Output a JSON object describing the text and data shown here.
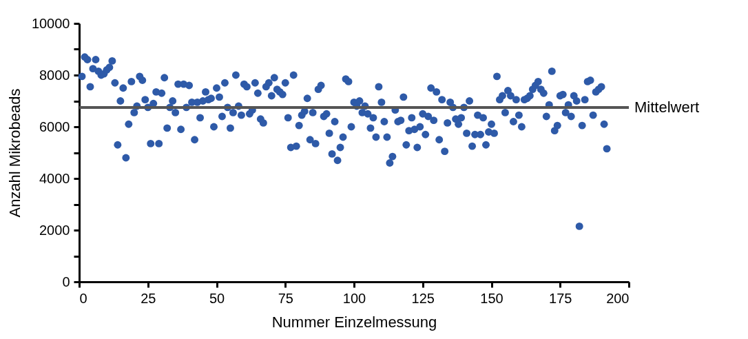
{
  "chart_data": {
    "type": "scatter",
    "xlabel": "Nummer Einzelmessung",
    "ylabel": "Anzahl Mikrobeads",
    "xlim": [
      0,
      200
    ],
    "xticks": [
      0,
      25,
      50,
      75,
      100,
      125,
      150,
      175,
      200
    ],
    "ylim": [
      0,
      10000
    ],
    "yticks": [
      0,
      {
        "value": 1000,
        "label": null
      },
      2000,
      {
        "value": 3000,
        "label": null
      },
      4000,
      {
        "value": 5000,
        "label": null
      },
      6000,
      {
        "value": 7000,
        "label": null
      },
      8000,
      {
        "value": 9000,
        "label": null
      },
      10000
    ],
    "grid": false,
    "marker": "circle",
    "x": [
      1,
      2,
      3,
      4,
      5,
      6,
      7,
      8,
      9,
      10,
      11,
      12,
      13,
      14,
      15,
      16,
      17,
      18,
      19,
      20,
      21,
      22,
      23,
      24,
      25,
      26,
      27,
      28,
      29,
      30,
      31,
      32,
      33,
      34,
      35,
      36,
      37,
      38,
      39,
      40,
      41,
      42,
      43,
      44,
      45,
      46,
      47,
      48,
      49,
      50,
      51,
      52,
      53,
      54,
      55,
      56,
      57,
      58,
      59,
      60,
      61,
      62,
      63,
      64,
      65,
      66,
      67,
      68,
      69,
      70,
      71,
      72,
      73,
      74,
      75,
      76,
      77,
      78,
      79,
      80,
      81,
      82,
      83,
      84,
      85,
      86,
      87,
      88,
      89,
      90,
      91,
      92,
      93,
      94,
      95,
      96,
      97,
      98,
      99,
      100,
      101,
      102,
      103,
      104,
      105,
      106,
      107,
      108,
      109,
      110,
      111,
      112,
      113,
      114,
      115,
      116,
      117,
      118,
      119,
      120,
      121,
      122,
      123,
      124,
      125,
      126,
      127,
      128,
      129,
      130,
      131,
      132,
      133,
      134,
      135,
      136,
      137,
      138,
      139,
      140,
      141,
      142,
      143,
      144,
      145,
      146,
      147,
      148,
      149,
      150,
      151,
      152,
      153,
      154,
      155,
      156,
      157,
      158,
      159,
      160,
      161,
      162,
      163,
      164,
      165,
      166,
      167,
      168,
      169,
      170,
      171,
      172,
      173,
      174,
      175,
      176,
      177,
      178,
      179,
      180,
      181,
      182,
      183,
      184,
      185,
      186,
      187,
      188,
      189,
      190,
      191,
      192
    ],
    "series": [
      {
        "color": "#2e5aa8",
        "values": [
          7950,
          8700,
          8600,
          7550,
          8250,
          8600,
          8150,
          8000,
          8050,
          8200,
          8300,
          8550,
          7700,
          5300,
          7000,
          7500,
          4800,
          6100,
          7750,
          6550,
          6800,
          7950,
          7800,
          7050,
          6750,
          5350,
          6900,
          7350,
          5350,
          7300,
          7900,
          5950,
          6750,
          7000,
          6550,
          7650,
          5900,
          7650,
          6750,
          7600,
          6950,
          5500,
          6950,
          6350,
          7000,
          7350,
          7050,
          7100,
          6000,
          7500,
          7150,
          6400,
          7700,
          6750,
          5950,
          6550,
          8000,
          6800,
          6450,
          7650,
          7550,
          6500,
          6650,
          7700,
          7300,
          6300,
          6150,
          7550,
          7700,
          7200,
          7900,
          7450,
          7350,
          7250,
          7700,
          6350,
          5200,
          8000,
          5250,
          6050,
          6450,
          6600,
          7100,
          5500,
          6550,
          5350,
          7450,
          7600,
          6400,
          6500,
          5750,
          4950,
          6200,
          4700,
          5200,
          5600,
          7850,
          7750,
          6000,
          6950,
          6800,
          7000,
          6550,
          6800,
          6500,
          5950,
          6350,
          5600,
          7550,
          6950,
          6200,
          5600,
          4600,
          4850,
          6650,
          6200,
          6250,
          7150,
          5300,
          5850,
          6350,
          5900,
          5200,
          6000,
          6500,
          5700,
          6400,
          7500,
          6250,
          7350,
          5500,
          7050,
          5050,
          6150,
          6950,
          6750,
          6300,
          6100,
          6350,
          6750,
          5750,
          7000,
          5250,
          5700,
          6450,
          5700,
          6350,
          5300,
          5800,
          6100,
          5750,
          7950,
          7050,
          7200,
          6550,
          7400,
          7200,
          6200,
          7050,
          6450,
          6000,
          7050,
          7100,
          7200,
          7450,
          7600,
          7750,
          7450,
          7300,
          6400,
          6850,
          8150,
          5850,
          6050,
          7200,
          7250,
          6550,
          6850,
          6400,
          7200,
          7000,
          2150,
          6050,
          7050,
          7750,
          7800,
          6450,
          7350,
          7450,
          7550,
          6100,
          5150
        ]
      }
    ],
    "ref_lines": [
      {
        "axis": "y",
        "value": 6750,
        "label": "Mittelwert",
        "color": "#555555"
      }
    ]
  }
}
